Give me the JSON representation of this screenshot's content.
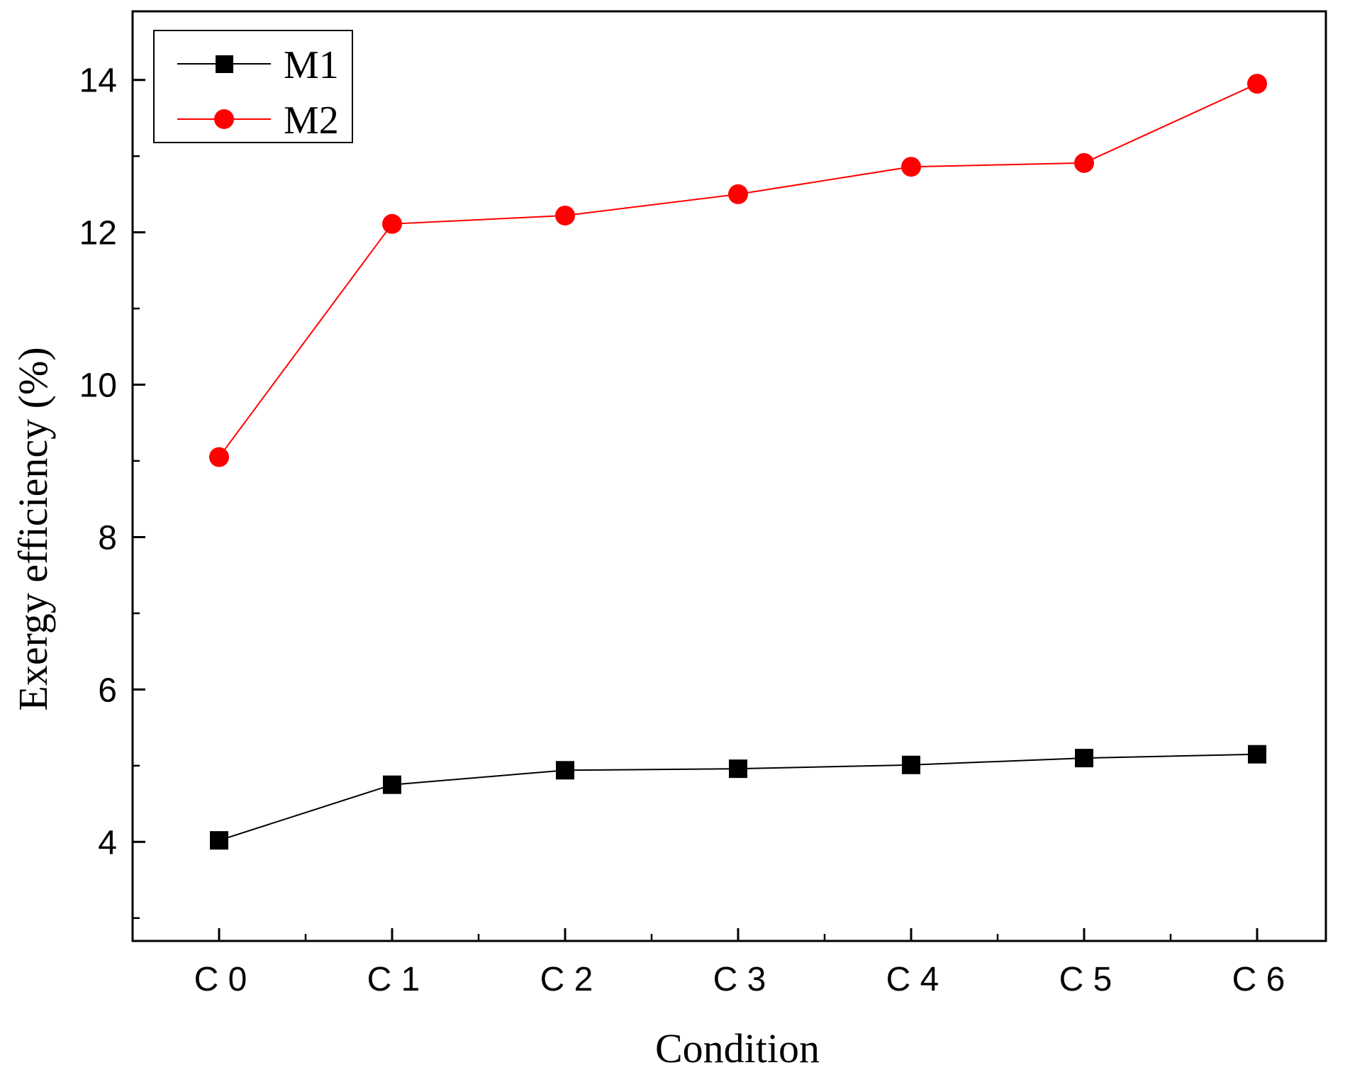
{
  "chart_data": {
    "type": "line",
    "title": "",
    "xlabel": "Condition",
    "ylabel": "Exergy efficiency (%)",
    "categories": [
      "C 0",
      "C 1",
      "C 2",
      "C 3",
      "C 4",
      "C 5",
      "C 6"
    ],
    "ylim": [
      2.7,
      14.9
    ],
    "yticks": [
      4,
      6,
      8,
      10,
      12,
      14
    ],
    "ytick_labels": [
      "4",
      "6",
      "8",
      "10",
      "12",
      "14"
    ],
    "grid": false,
    "legend_position": "top-left",
    "series": [
      {
        "name": "M1",
        "values": [
          4.02,
          4.75,
          4.94,
          4.96,
          5.01,
          5.1,
          5.15
        ],
        "color": "#000000",
        "marker": "square"
      },
      {
        "name": "M2",
        "values": [
          9.05,
          12.11,
          12.22,
          12.5,
          12.86,
          12.91,
          13.95
        ],
        "color": "#ff0000",
        "marker": "circle"
      }
    ]
  }
}
